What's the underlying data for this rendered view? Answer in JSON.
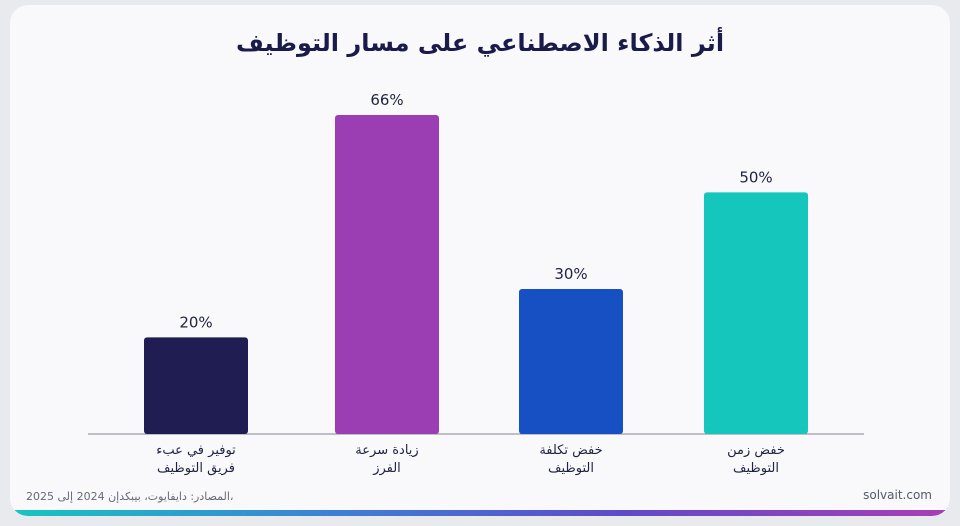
{
  "chart_data": {
    "type": "bar",
    "title": "أثر الذكاء الاصطناعي على مسار التوظيف",
    "categories": [
      [
        "توفير في عبء",
        "فريق التوظيف"
      ],
      [
        "زيادة سرعة",
        "الفرز"
      ],
      [
        "خفض تكلفة",
        "التوظيف"
      ],
      [
        "خفض زمن",
        "التوظيف"
      ]
    ],
    "values": [
      20,
      66,
      30,
      50
    ],
    "value_labels": [
      "20%",
      "66%",
      "30%",
      "50%"
    ],
    "colors": [
      "#201d52",
      "#9b3db3",
      "#1750c3",
      "#14c6bb"
    ],
    "ylim": [
      0,
      70
    ],
    "grid": false,
    "legend": "none"
  },
  "footer": {
    "source": "المصادر: دايفايوت، بيبكدإن 2024 إلى 2025،",
    "brand": "solvait.com"
  }
}
